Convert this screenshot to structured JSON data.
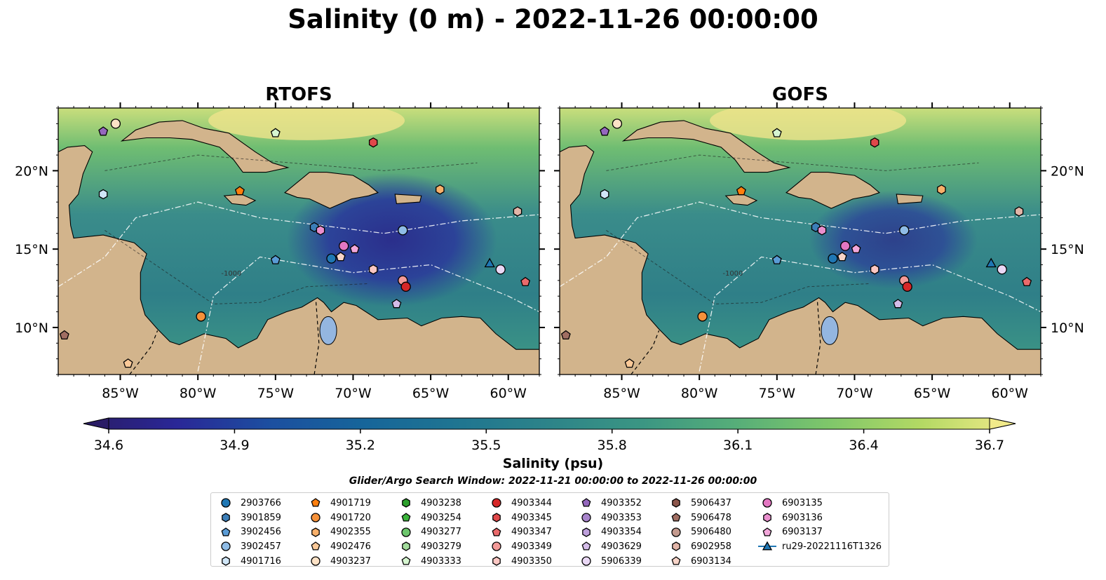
{
  "title": "Salinity (0 m) - 2022-11-26 00:00:00",
  "panels": [
    {
      "title": "RTOFS"
    },
    {
      "title": "GOFS"
    }
  ],
  "map": {
    "lon_range": [
      -89,
      -58
    ],
    "lat_range": [
      7,
      24
    ],
    "x_ticks": [
      "85°W",
      "80°W",
      "75°W",
      "70°W",
      "65°W",
      "60°W"
    ],
    "x_tick_values": [
      -85,
      -80,
      -75,
      -70,
      -65,
      -60
    ],
    "y_ticks": [
      "10°N",
      "15°N",
      "20°N"
    ],
    "y_tick_values": [
      10,
      15,
      20
    ],
    "contour_label": "-1000",
    "land_color": "#d2b48c",
    "deep_water_color": "#2a1c66"
  },
  "colorbar": {
    "label": "Salinity (psu)",
    "ticks": [
      "34.6",
      "34.9",
      "35.2",
      "35.5",
      "35.8",
      "36.1",
      "36.4",
      "36.7"
    ],
    "min": 34.6,
    "max": 36.7,
    "extend": "both",
    "colormap": "haline"
  },
  "search_window": "Glider/Argo Search Window: 2022-11-21 00:00:00 to 2022-11-26 00:00:00",
  "legend": [
    {
      "id": "2903766",
      "marker": "circle",
      "color": "#1f77b4"
    },
    {
      "id": "3901859",
      "marker": "hexagon",
      "color": "#3c7eb8"
    },
    {
      "id": "3902456",
      "marker": "pentagon",
      "color": "#5a9bd5"
    },
    {
      "id": "3902457",
      "marker": "circle",
      "color": "#8fbce6"
    },
    {
      "id": "4901716",
      "marker": "hexagon",
      "color": "#d0e6f7"
    },
    {
      "id": "4901719",
      "marker": "pentagon",
      "color": "#ff7f0e"
    },
    {
      "id": "4901720",
      "marker": "circle",
      "color": "#f5913a"
    },
    {
      "id": "4902355",
      "marker": "hexagon",
      "color": "#f8b06a"
    },
    {
      "id": "4902476",
      "marker": "pentagon",
      "color": "#fbc998"
    },
    {
      "id": "4903237",
      "marker": "circle",
      "color": "#fde2c6"
    },
    {
      "id": "4903238",
      "marker": "hexagon",
      "color": "#2ca02c"
    },
    {
      "id": "4903254",
      "marker": "pentagon",
      "color": "#3bb33b"
    },
    {
      "id": "4903277",
      "marker": "circle",
      "color": "#6cc66c"
    },
    {
      "id": "4903279",
      "marker": "hexagon",
      "color": "#a3dc9c"
    },
    {
      "id": "4903333",
      "marker": "pentagon",
      "color": "#d6f5d0"
    },
    {
      "id": "4903344",
      "marker": "circle",
      "color": "#d62728"
    },
    {
      "id": "4903345",
      "marker": "hexagon",
      "color": "#e0484a"
    },
    {
      "id": "4903347",
      "marker": "pentagon",
      "color": "#ea6a6b"
    },
    {
      "id": "4903349",
      "marker": "circle",
      "color": "#f39a98"
    },
    {
      "id": "4903350",
      "marker": "hexagon",
      "color": "#fbc7c3"
    },
    {
      "id": "4903352",
      "marker": "pentagon",
      "color": "#9467bd"
    },
    {
      "id": "4903353",
      "marker": "circle",
      "color": "#a884cc"
    },
    {
      "id": "4903354",
      "marker": "hexagon",
      "color": "#bd9fdb"
    },
    {
      "id": "4903629",
      "marker": "pentagon",
      "color": "#d4bce8"
    },
    {
      "id": "5906339",
      "marker": "circle",
      "color": "#ead8f5"
    },
    {
      "id": "5906437",
      "marker": "hexagon",
      "color": "#8c564b"
    },
    {
      "id": "5906478",
      "marker": "pentagon",
      "color": "#a06e62"
    },
    {
      "id": "5906480",
      "marker": "circle",
      "color": "#c49a8e"
    },
    {
      "id": "6902958",
      "marker": "hexagon",
      "color": "#e2b5a8"
    },
    {
      "id": "6903134",
      "marker": "pentagon",
      "color": "#f7d4c8"
    },
    {
      "id": "6903135",
      "marker": "circle",
      "color": "#e377c2"
    },
    {
      "id": "6903136",
      "marker": "hexagon",
      "color": "#ea8fce"
    },
    {
      "id": "6903137",
      "marker": "pentagon",
      "color": "#f2a7da"
    },
    {
      "id": "ru29-20221116T1326",
      "marker": "triangle-line",
      "color": "#1f77b4"
    }
  ],
  "floats": [
    {
      "id": "4903237",
      "lon": -85.3,
      "lat": 23.0
    },
    {
      "id": "4903352",
      "lon": -86.1,
      "lat": 22.5
    },
    {
      "id": "4903333",
      "lon": -75.0,
      "lat": 22.4
    },
    {
      "id": "4903345",
      "lon": -68.7,
      "lat": 21.8
    },
    {
      "id": "4901716",
      "lon": -86.1,
      "lat": 18.5
    },
    {
      "id": "4901719",
      "lon": -77.3,
      "lat": 18.7
    },
    {
      "id": "4902355",
      "lon": -64.4,
      "lat": 18.8
    },
    {
      "id": "6902958",
      "lon": -59.4,
      "lat": 17.4
    },
    {
      "id": "3901859",
      "lon": -72.5,
      "lat": 16.4
    },
    {
      "id": "6903136",
      "lon": -72.1,
      "lat": 16.2
    },
    {
      "id": "3902457",
      "lon": -66.8,
      "lat": 16.2
    },
    {
      "id": "6903135",
      "lon": -70.6,
      "lat": 15.2
    },
    {
      "id": "6903137",
      "lon": -69.9,
      "lat": 15.0
    },
    {
      "id": "3902456",
      "lon": -75.0,
      "lat": 14.3
    },
    {
      "id": "2903766",
      "lon": -71.4,
      "lat": 14.4
    },
    {
      "id": "6903134",
      "lon": -70.8,
      "lat": 14.5
    },
    {
      "id": "4903350",
      "lon": -68.7,
      "lat": 13.7
    },
    {
      "id": "ru29-20221116T1326",
      "lon": -61.2,
      "lat": 14.1
    },
    {
      "id": "5906339",
      "lon": -60.5,
      "lat": 13.7
    },
    {
      "id": "4903349",
      "lon": -66.8,
      "lat": 13.0
    },
    {
      "id": "4903344",
      "lon": -66.6,
      "lat": 12.6
    },
    {
      "id": "4903347",
      "lon": -58.9,
      "lat": 12.9
    },
    {
      "id": "4903629",
      "lon": -67.2,
      "lat": 11.5
    },
    {
      "id": "4901720",
      "lon": -79.8,
      "lat": 10.7
    },
    {
      "id": "5906478",
      "lon": -88.6,
      "lat": 9.5
    },
    {
      "id": "4902476",
      "lon": -84.5,
      "lat": 7.7
    }
  ]
}
